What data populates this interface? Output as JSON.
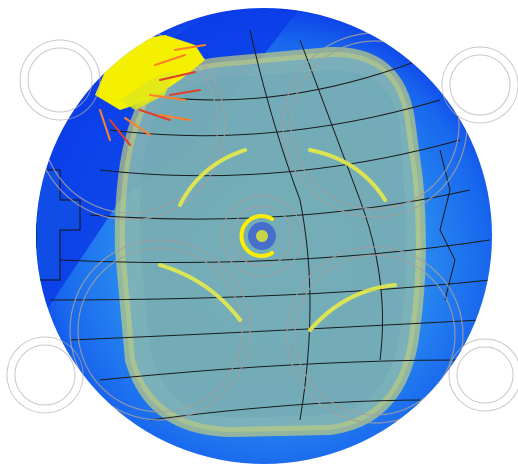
{
  "scene": {
    "kind": "simulation-visualization",
    "palette": {
      "background": "#ffffff",
      "disk_outer": "#0b3ce8",
      "disk_mid": "#1f7ff0",
      "disk_inner": "#2f97ef",
      "rounded_domain": "#7fb3b8",
      "domain_edge": "#b9c98f",
      "domain_fill_light": "#a8c6a0",
      "yellow_blob": "#f4f000",
      "arrow_orange": "#ff7f2a",
      "arrow_red": "#e0402a",
      "contour": "#1a1a1a",
      "gray_ring": "#9a9a9a",
      "arc_yellow": "#e7ea4a",
      "center_ring": "#ffee00",
      "center_dot": "#3a5fcf"
    },
    "elements": {
      "main_disk": "circular-field",
      "inner_domain": "rounded-square-domain",
      "corner_source": "yellow-cluster-with-vectors",
      "rings": "overlapping-gray-circles",
      "contours": "black-isolines",
      "center_marker": "yellow-c-ring"
    }
  }
}
